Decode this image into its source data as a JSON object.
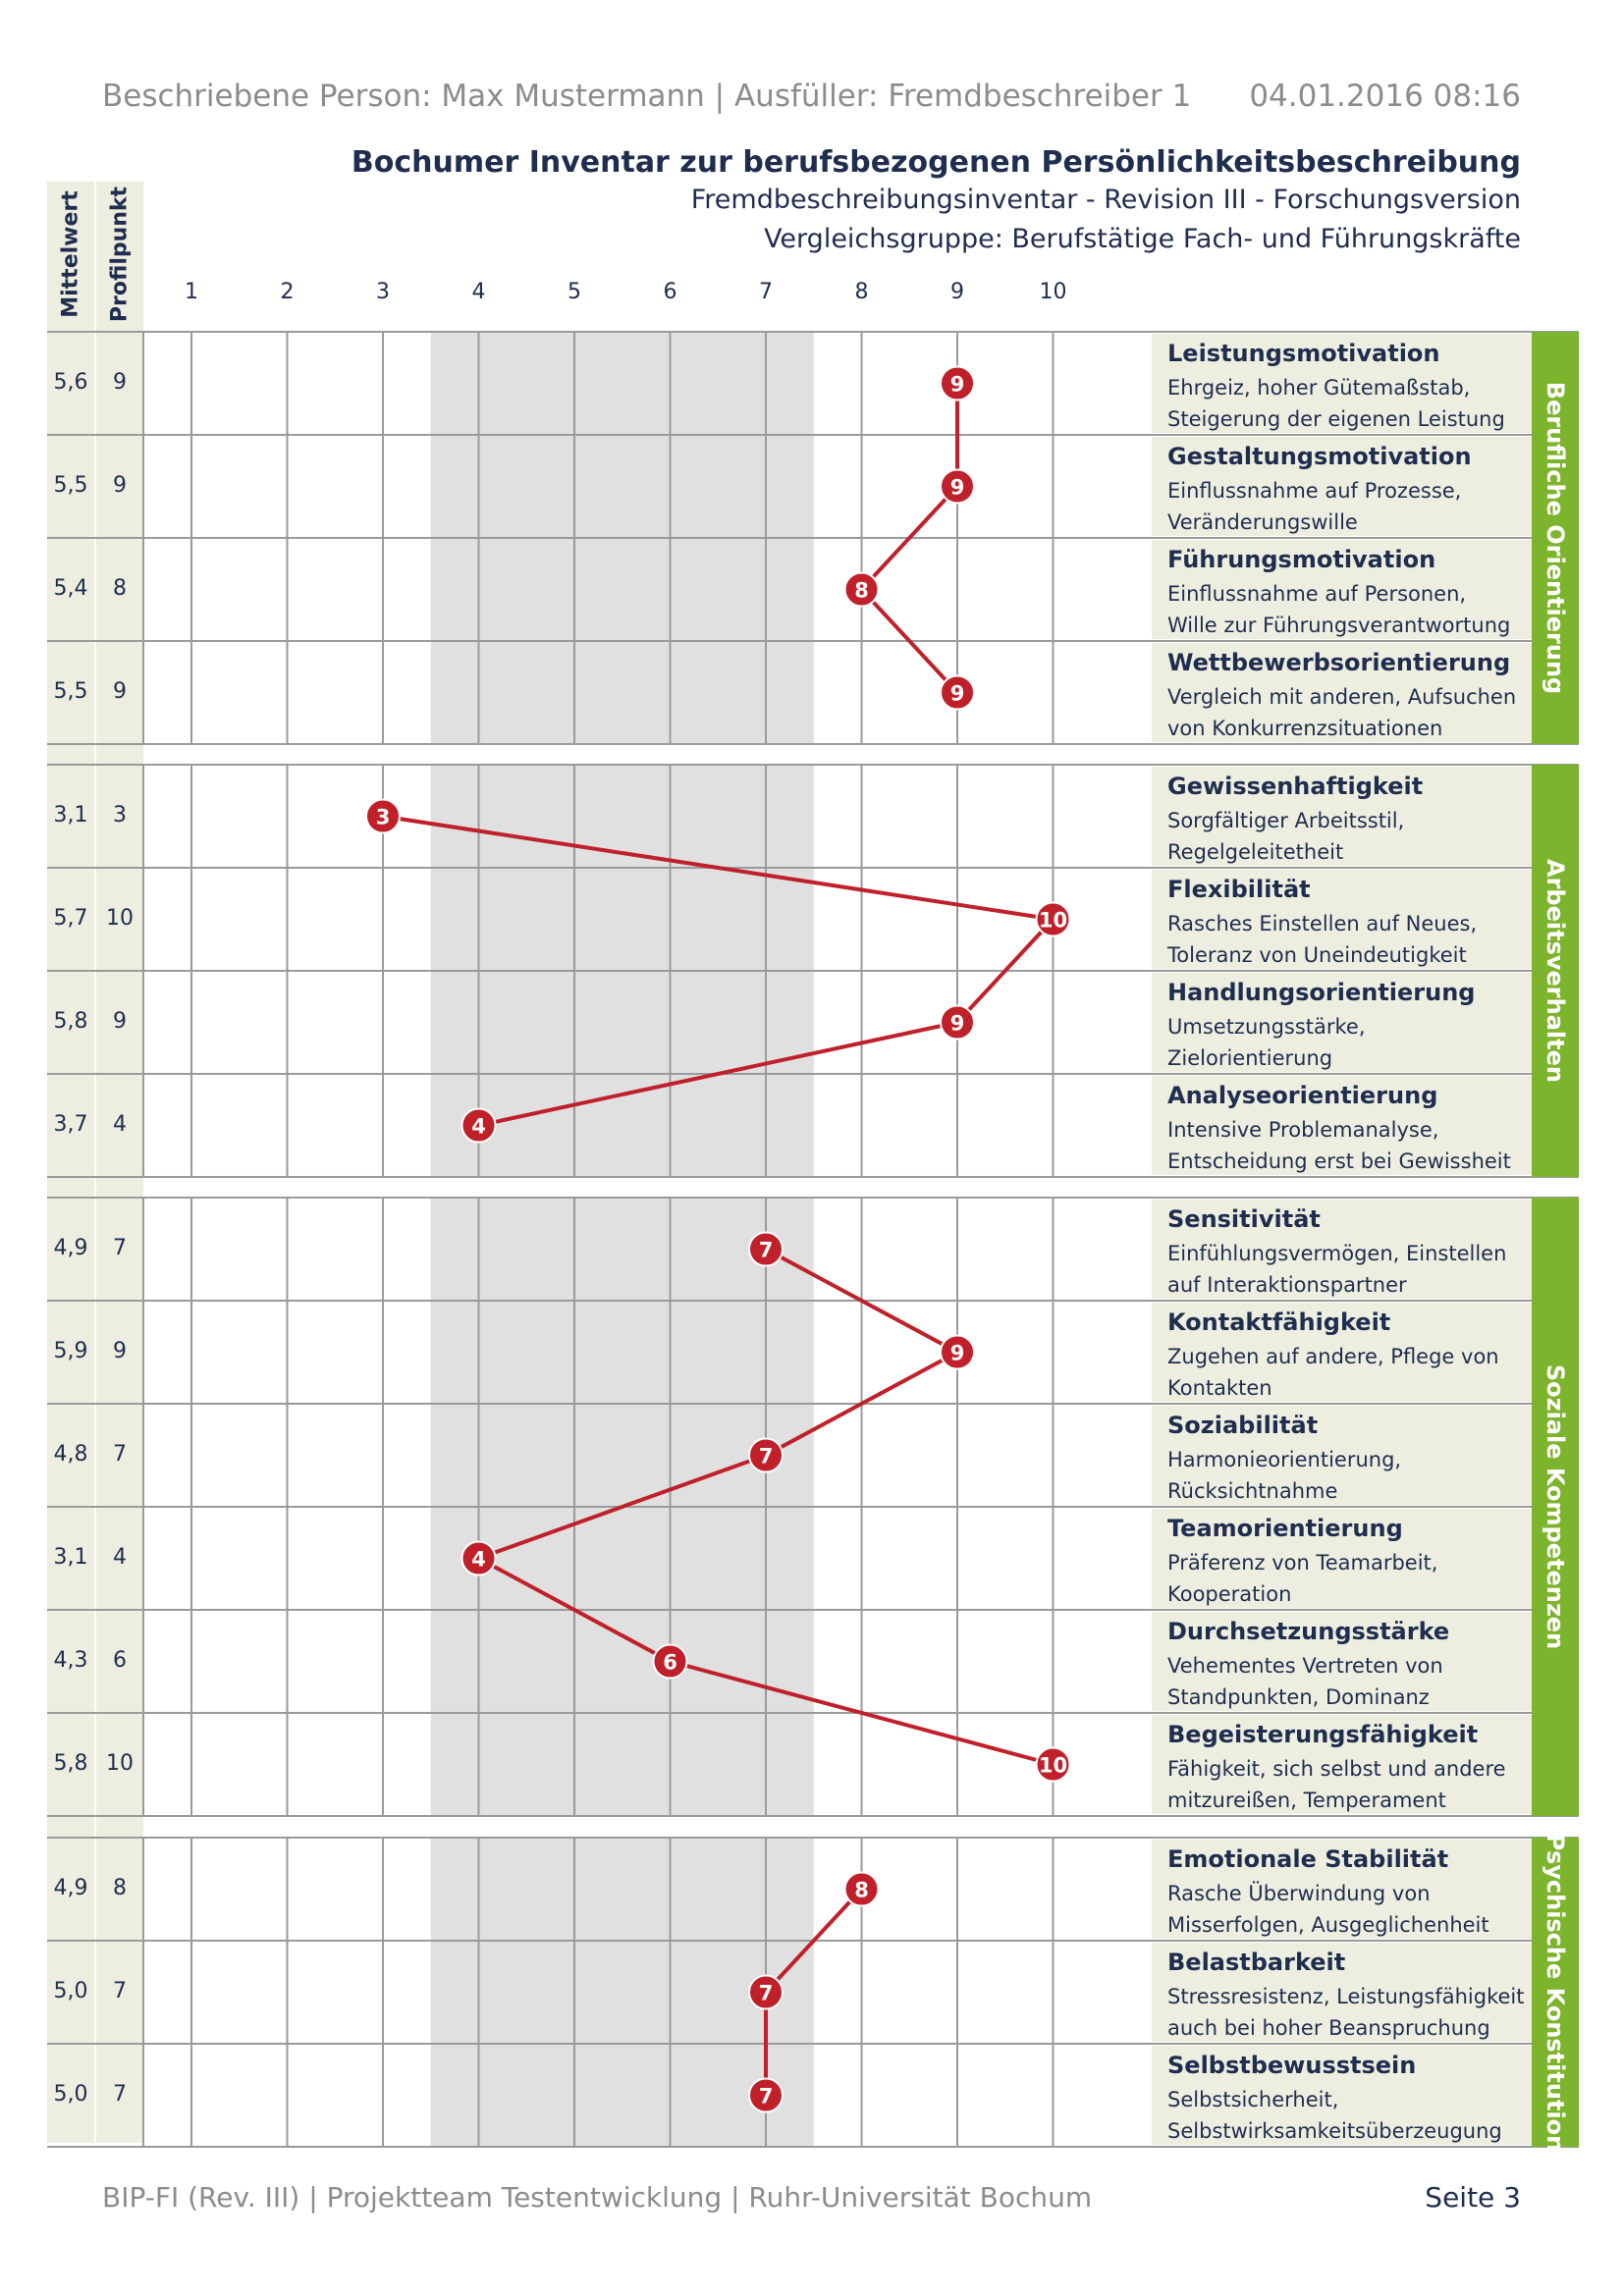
{
  "header": {
    "person_line": "Beschriebene Person: Max Mustermann | Ausfüller:  Fremdbeschreiber 1",
    "date": "04.01.2016 08:16",
    "title": "Bochumer Inventar zur berufsbezogenen Persönlichkeitsbeschreibung",
    "subtitle1": "Fremdbeschreibungsinventar - Revision III - Forschungsversion",
    "subtitle2": "Vergleichsgruppe: Berufstätige Fach- und Führungskräfte"
  },
  "columns": {
    "mean_label": "Mittelwert",
    "profile_label": "Profilpunkt",
    "scale": [
      "1",
      "2",
      "3",
      "4",
      "5",
      "6",
      "7",
      "8",
      "9",
      "10"
    ]
  },
  "categories": [
    {
      "name": "Berufliche Orientierung",
      "scales": [
        {
          "name": "Leistungsmotivation",
          "desc1": "Ehrgeiz, hoher Gütemaßstab,",
          "desc2": "Steigerung der eigenen Leistung",
          "mean": "5,6",
          "profile": 9
        },
        {
          "name": "Gestaltungsmotivation",
          "desc1": "Einflussnahme auf Prozesse,",
          "desc2": "Veränderungswille",
          "mean": "5,5",
          "profile": 9
        },
        {
          "name": "Führungsmotivation",
          "desc1": "Einflussnahme auf Personen,",
          "desc2": "Wille zur Führungsverantwortung",
          "mean": "5,4",
          "profile": 8
        },
        {
          "name": "Wettbewerbsorientierung",
          "desc1": "Vergleich mit anderen, Aufsuchen",
          "desc2": "von Konkurrenzsituationen",
          "mean": "5,5",
          "profile": 9
        }
      ]
    },
    {
      "name": "Arbeitsverhalten",
      "scales": [
        {
          "name": "Gewissenhaftigkeit",
          "desc1": "Sorgfältiger Arbeitsstil,",
          "desc2": "Regelgeleitetheit",
          "mean": "3,1",
          "profile": 3
        },
        {
          "name": "Flexibilität",
          "desc1": "Rasches Einstellen auf Neues,",
          "desc2": "Toleranz von Uneindeutigkeit",
          "mean": "5,7",
          "profile": 10
        },
        {
          "name": "Handlungsorientierung",
          "desc1": "Umsetzungsstärke,",
          "desc2": "Zielorientierung",
          "mean": "5,8",
          "profile": 9
        },
        {
          "name": "Analyseorientierung",
          "desc1": "Intensive Problemanalyse,",
          "desc2": "Entscheidung erst bei Gewissheit",
          "mean": "3,7",
          "profile": 4
        }
      ]
    },
    {
      "name": "Soziale Kompetenzen",
      "scales": [
        {
          "name": "Sensitivität",
          "desc1": "Einfühlungsvermögen, Einstellen",
          "desc2": "auf Interaktionspartner",
          "mean": "4,9",
          "profile": 7
        },
        {
          "name": "Kontaktfähigkeit",
          "desc1": "Zugehen auf andere, Pflege von",
          "desc2": "Kontakten",
          "mean": "5,9",
          "profile": 9
        },
        {
          "name": "Soziabilität",
          "desc1": "Harmonieorientierung,",
          "desc2": "Rücksichtnahme",
          "mean": "4,8",
          "profile": 7
        },
        {
          "name": "Teamorientierung",
          "desc1": "Präferenz von Teamarbeit,",
          "desc2": "Kooperation",
          "mean": "3,1",
          "profile": 4
        },
        {
          "name": "Durchsetzungsstärke",
          "desc1": "Vehementes Vertreten von",
          "desc2": "Standpunkten, Dominanz",
          "mean": "4,3",
          "profile": 6
        },
        {
          "name": "Begeisterungsfähigkeit",
          "desc1": "Fähigkeit, sich selbst und andere",
          "desc2": "mitzureißen, Temperament",
          "mean": "5,8",
          "profile": 10
        }
      ]
    },
    {
      "name": "Psychische Konstitution",
      "scales": [
        {
          "name": "Emotionale Stabilität",
          "desc1": "Rasche Überwindung von",
          "desc2": "Misserfolgen, Ausgeglichenheit",
          "mean": "4,9",
          "profile": 8
        },
        {
          "name": "Belastbarkeit",
          "desc1": "Stressresistenz, Leistungsfähigkeit",
          "desc2": "auch bei hoher Beanspruchung",
          "mean": "5,0",
          "profile": 7
        },
        {
          "name": "Selbstbewusstsein",
          "desc1": "Selbstsicherheit,",
          "desc2": "Selbstwirksamkeitsüberzeugung",
          "mean": "5,0",
          "profile": 7
        }
      ]
    }
  ],
  "average_band": [
    4,
    7
  ],
  "colors": {
    "navy": "#1f2d4f",
    "green": "#7db42d",
    "band": "#e0e0e0",
    "stripe": "#eeeee0",
    "marker": "#c0202a",
    "grid": "#9a9a9a"
  },
  "footer": {
    "left": "BIP-FI (Rev. III) | Projektteam Testentwicklung | Ruhr-Universität Bochum",
    "right": "Seite 3"
  }
}
